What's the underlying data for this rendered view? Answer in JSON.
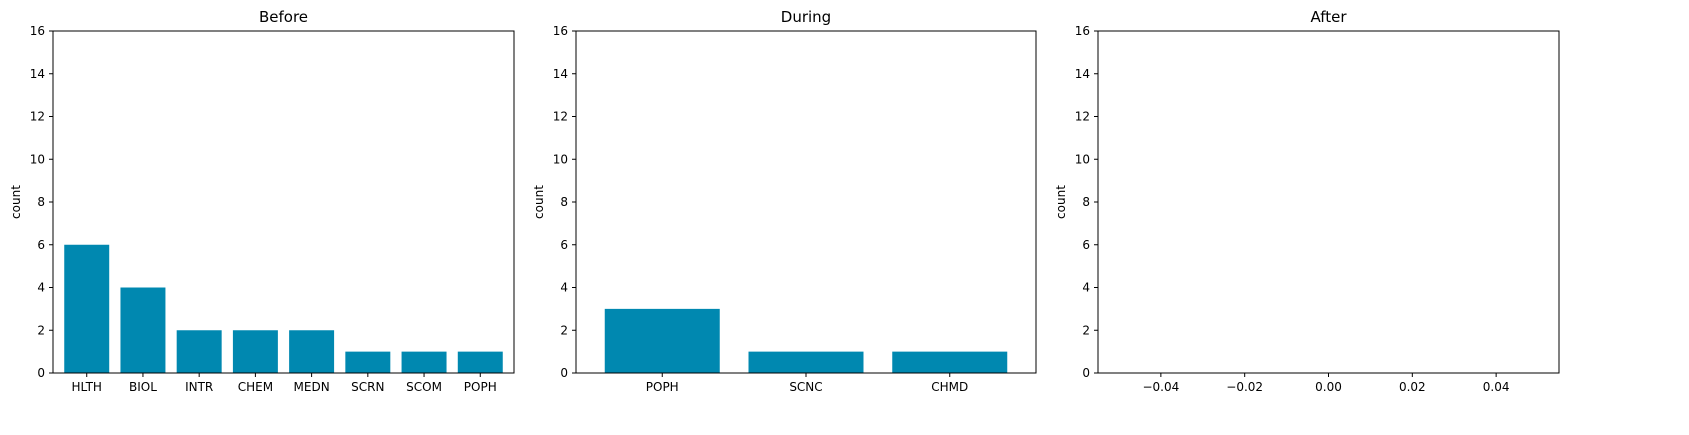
{
  "chart_data": [
    {
      "type": "bar",
      "title": "Before",
      "xlabel": "",
      "ylabel": "count",
      "categories": [
        "HLTH",
        "BIOL",
        "INTR",
        "CHEM",
        "MEDN",
        "SCRN",
        "SCOM",
        "POPH"
      ],
      "values": [
        6,
        4,
        2,
        2,
        2,
        1,
        1,
        1
      ],
      "ylim": [
        0,
        16
      ],
      "yticks": [
        "0",
        "2",
        "4",
        "6",
        "8",
        "10",
        "12",
        "14",
        "16"
      ],
      "grid": false,
      "color": "#0088b0"
    },
    {
      "type": "bar",
      "title": "During",
      "xlabel": "",
      "ylabel": "count",
      "categories": [
        "POPH",
        "SCNC",
        "CHMD"
      ],
      "values": [
        3,
        1,
        1
      ],
      "ylim": [
        0,
        16
      ],
      "yticks": [
        "0",
        "2",
        "4",
        "6",
        "8",
        "10",
        "12",
        "14",
        "16"
      ],
      "grid": false,
      "color": "#0088b0"
    },
    {
      "type": "bar",
      "title": "After",
      "xlabel": "",
      "ylabel": "count",
      "categories": [],
      "values": [],
      "ylim": [
        0,
        16
      ],
      "yticks": [
        "0",
        "2",
        "4",
        "6",
        "8",
        "10",
        "12",
        "14",
        "16"
      ],
      "xlim": [
        -0.055,
        0.055
      ],
      "xticks": [
        "−0.04",
        "−0.02",
        "0.00",
        "0.02",
        "0.04"
      ],
      "xtick_values": [
        -0.04,
        -0.02,
        0.0,
        0.02,
        0.04
      ],
      "grid": false,
      "color": "#0088b0"
    }
  ]
}
